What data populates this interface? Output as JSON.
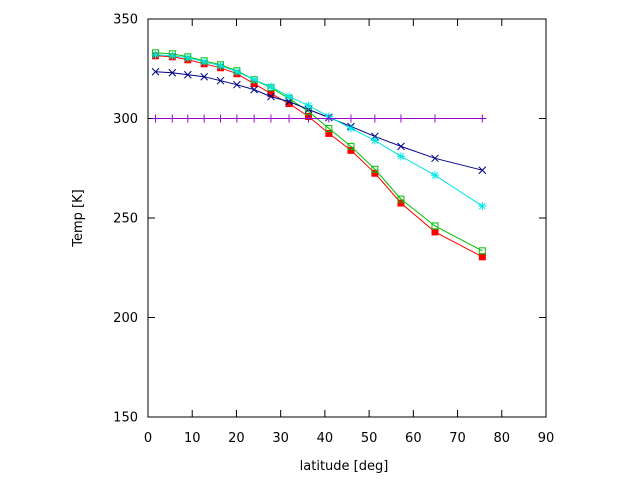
{
  "chart_data": {
    "type": "line",
    "title": "",
    "xlabel": "latitude [deg]",
    "ylabel": "Temp [K]",
    "xlim": [
      0,
      90
    ],
    "ylim": [
      150,
      350
    ],
    "xticks": [
      0,
      10,
      20,
      30,
      40,
      50,
      60,
      70,
      80,
      90
    ],
    "yticks": [
      150,
      200,
      250,
      300,
      350
    ],
    "grid": false,
    "legend": "none",
    "x": [
      1.7,
      5.5,
      9.0,
      12.7,
      16.4,
      20.1,
      24.0,
      27.8,
      31.9,
      36.3,
      40.9,
      45.9,
      51.3,
      57.2,
      64.9,
      75.6
    ],
    "series": [
      {
        "color": "#ff0000",
        "marker": "filled-square",
        "values": [
          331.5,
          331.0,
          329.5,
          327.5,
          325.5,
          322.5,
          317.5,
          312.5,
          307.5,
          301.0,
          292.5,
          284.0,
          272.5,
          257.5,
          243.0,
          230.5
        ]
      },
      {
        "color": "#00c000",
        "marker": "open-square",
        "values": [
          333.0,
          332.5,
          331.0,
          329.0,
          327.0,
          324.0,
          319.5,
          315.5,
          310.0,
          303.5,
          295.0,
          286.0,
          274.5,
          259.5,
          246.0,
          233.5
        ]
      },
      {
        "color": "#00008b",
        "marker": "x",
        "values": [
          323.5,
          323.0,
          322.0,
          321.0,
          319.0,
          317.0,
          314.5,
          311.0,
          308.5,
          304.5,
          300.5,
          296.0,
          291.0,
          286.0,
          280.0,
          274.0
        ]
      },
      {
        "color": "#00e5e5",
        "marker": "star",
        "values": [
          332.0,
          331.5,
          330.5,
          328.5,
          326.5,
          323.5,
          319.5,
          316.0,
          311.0,
          306.5,
          301.0,
          295.0,
          289.0,
          281.0,
          271.5,
          256.0
        ]
      },
      {
        "color": "#9400d3",
        "marker": "plus",
        "values": [
          300,
          300,
          300,
          300,
          300,
          300,
          300,
          300,
          300,
          300,
          300,
          300,
          300,
          300,
          300,
          300
        ]
      }
    ]
  }
}
